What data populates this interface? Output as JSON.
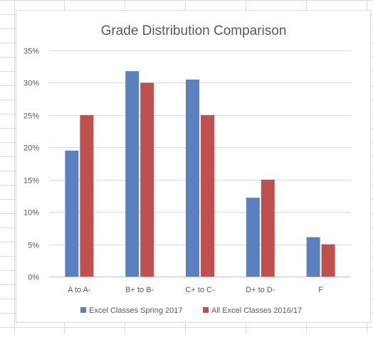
{
  "colors": {
    "series1": "#5b80c0",
    "series2": "#c0504d",
    "gridline": "#d9d9d9",
    "axis": "#bfbfbf",
    "text": "#595959",
    "sheet_grid": "#dadada"
  },
  "chart_data": {
    "type": "bar",
    "title": "Grade Distribution Comparison",
    "xlabel": "",
    "ylabel": "",
    "categories": [
      "A to A-",
      "B+ to B-",
      "C+ to C-",
      "D+ to D-",
      "F"
    ],
    "series": [
      {
        "name": "Excel Classes Spring 2017",
        "values": [
          19.5,
          31.8,
          30.5,
          12.2,
          6.1
        ]
      },
      {
        "name": "All Excel Classes 2016/17",
        "values": [
          25,
          30,
          25,
          15,
          5
        ]
      }
    ],
    "ylim": [
      0,
      35
    ],
    "yticks": [
      "0%",
      "5%",
      "10%",
      "15%",
      "20%",
      "25%",
      "30%",
      "35%"
    ],
    "ytick_values": [
      0,
      5,
      10,
      15,
      20,
      25,
      30,
      35
    ],
    "grid": true,
    "legend_position": "bottom"
  }
}
